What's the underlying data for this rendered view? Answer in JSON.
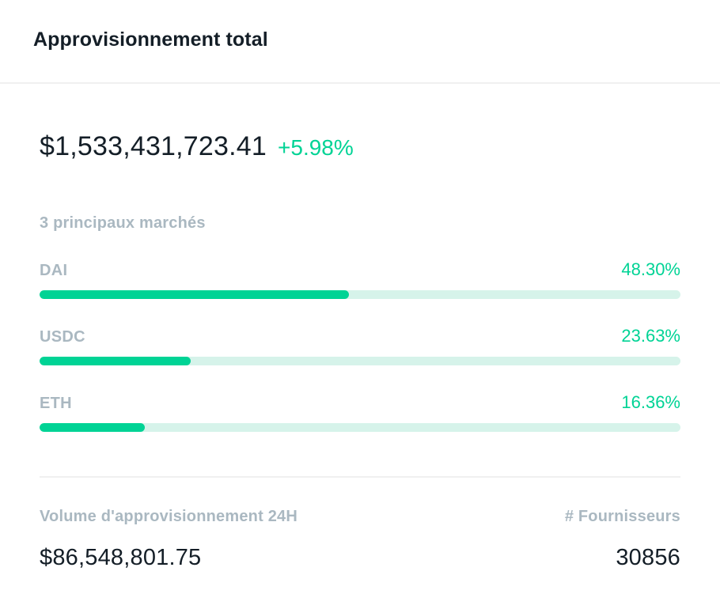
{
  "header": {
    "title": "Approvisionnement total"
  },
  "hero": {
    "value": "$1,533,431,723.41",
    "change": "+5.98%"
  },
  "markets": {
    "heading": "3 principaux marchés",
    "items": [
      {
        "label": "DAI",
        "percent_label": "48.30%",
        "percent": 48.3
      },
      {
        "label": "USDC",
        "percent_label": "23.63%",
        "percent": 23.63
      },
      {
        "label": "ETH",
        "percent_label": "16.36%",
        "percent": 16.36
      }
    ]
  },
  "footer": {
    "volume": {
      "label": "Volume d'approvisionnement 24H",
      "value": "$86,548,801.75"
    },
    "suppliers": {
      "label": "# Fournisseurs",
      "value": "30856"
    }
  },
  "colors": {
    "accent_green": "#00d395",
    "track_green": "#d6f3ea",
    "label_gray": "#aab8c1",
    "text_dark": "#141e27",
    "divider": "#f0f0f0"
  }
}
